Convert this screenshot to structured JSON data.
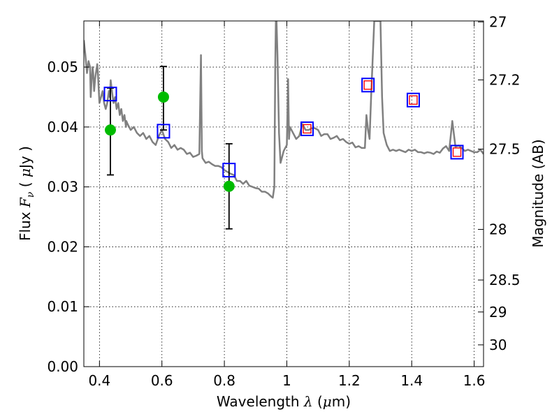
{
  "chart_data": {
    "type": "scatter",
    "xlabel": {
      "prefix": "Wavelength  ",
      "symbol": "λ",
      "open": " (",
      "unit_greek": "μ",
      "unit": "m)"
    },
    "ylabel": {
      "prefix": "Flux  ",
      "symbol": "F",
      "subscript": "ν",
      "open": "  ( ",
      "unit_greek": "μ",
      "unit": "Jy )"
    },
    "y2label": "Magnitude (AB)",
    "xlim": [
      0.35,
      1.63
    ],
    "ylim": [
      0.0,
      0.0577
    ],
    "grid": true,
    "x_ticks": [
      {
        "value": 0.4,
        "label": "0.4"
      },
      {
        "value": 0.6,
        "label": "0.6"
      },
      {
        "value": 0.8,
        "label": "0.8"
      },
      {
        "value": 1.0,
        "label": "1"
      },
      {
        "value": 1.2,
        "label": "1.2"
      },
      {
        "value": 1.4,
        "label": "1.4"
      },
      {
        "value": 1.6,
        "label": "1.6"
      }
    ],
    "y_ticks": [
      {
        "value": 0.0,
        "label": "0.00"
      },
      {
        "value": 0.01,
        "label": "0.01"
      },
      {
        "value": 0.02,
        "label": "0.02"
      },
      {
        "value": 0.03,
        "label": "0.03"
      },
      {
        "value": 0.04,
        "label": "0.04"
      },
      {
        "value": 0.05,
        "label": "0.05"
      }
    ],
    "y2_ticks": [
      {
        "mag": 27,
        "label": "27"
      },
      {
        "mag": 27.2,
        "label": "27.2"
      },
      {
        "mag": 27.5,
        "label": "27.5"
      },
      {
        "mag": 28,
        "label": "28"
      },
      {
        "mag": 28.5,
        "label": "28.5"
      },
      {
        "mag": 29,
        "label": "29"
      },
      {
        "mag": 30,
        "label": "30"
      }
    ],
    "series": [
      {
        "kind": "spectrum",
        "color": "#808080",
        "x": [
          0.35,
          0.355,
          0.36,
          0.365,
          0.37,
          0.372,
          0.375,
          0.378,
          0.38,
          0.383,
          0.386,
          0.39,
          0.393,
          0.395,
          0.4,
          0.405,
          0.41,
          0.415,
          0.42,
          0.425,
          0.43,
          0.433,
          0.436,
          0.44,
          0.445,
          0.45,
          0.455,
          0.46,
          0.465,
          0.47,
          0.475,
          0.48,
          0.485,
          0.486,
          0.49,
          0.5,
          0.51,
          0.52,
          0.53,
          0.54,
          0.55,
          0.56,
          0.57,
          0.58,
          0.59,
          0.6,
          0.61,
          0.62,
          0.63,
          0.64,
          0.65,
          0.66,
          0.67,
          0.68,
          0.69,
          0.7,
          0.71,
          0.72,
          0.725,
          0.728,
          0.73,
          0.74,
          0.75,
          0.76,
          0.77,
          0.78,
          0.79,
          0.8,
          0.81,
          0.82,
          0.83,
          0.84,
          0.85,
          0.86,
          0.87,
          0.88,
          0.89,
          0.9,
          0.91,
          0.92,
          0.93,
          0.94,
          0.95,
          0.955,
          0.96,
          0.963,
          0.965,
          0.967,
          0.97,
          0.975,
          0.98,
          0.99,
          1.0,
          1.004,
          1.007,
          1.01,
          1.02,
          1.03,
          1.04,
          1.05,
          1.06,
          1.07,
          1.08,
          1.09,
          1.1,
          1.11,
          1.12,
          1.13,
          1.14,
          1.15,
          1.16,
          1.17,
          1.18,
          1.19,
          1.2,
          1.21,
          1.22,
          1.23,
          1.24,
          1.25,
          1.255,
          1.26,
          1.265,
          1.27,
          1.28,
          1.29,
          1.3,
          1.305,
          1.31,
          1.315,
          1.32,
          1.325,
          1.33,
          1.34,
          1.35,
          1.36,
          1.37,
          1.38,
          1.39,
          1.4,
          1.41,
          1.42,
          1.43,
          1.44,
          1.45,
          1.46,
          1.47,
          1.48,
          1.49,
          1.5,
          1.51,
          1.52,
          1.53,
          1.54,
          1.55,
          1.56,
          1.57,
          1.58,
          1.59,
          1.6,
          1.61,
          1.62,
          1.63
        ],
        "y": [
          0.0545,
          0.052,
          0.049,
          0.051,
          0.05,
          0.045,
          0.048,
          0.05,
          0.049,
          0.046,
          0.048,
          0.0495,
          0.0505,
          0.049,
          0.044,
          0.045,
          0.046,
          0.044,
          0.043,
          0.044,
          0.046,
          0.045,
          0.0478,
          0.046,
          0.044,
          0.045,
          0.043,
          0.044,
          0.042,
          0.043,
          0.041,
          0.042,
          0.04,
          0.041,
          0.0405,
          0.0395,
          0.04,
          0.039,
          0.0385,
          0.039,
          0.038,
          0.0385,
          0.0375,
          0.037,
          0.0385,
          0.0395,
          0.038,
          0.0375,
          0.0365,
          0.037,
          0.0362,
          0.0365,
          0.0362,
          0.0355,
          0.0357,
          0.035,
          0.0352,
          0.0355,
          0.052,
          0.036,
          0.0348,
          0.034,
          0.0342,
          0.0338,
          0.0335,
          0.0335,
          0.0333,
          0.0328,
          0.0325,
          0.0322,
          0.032,
          0.031,
          0.031,
          0.0305,
          0.031,
          0.0302,
          0.03,
          0.0298,
          0.0297,
          0.0292,
          0.0292,
          0.0289,
          0.0284,
          0.0282,
          0.03,
          0.05,
          0.0577,
          0.0577,
          0.052,
          0.039,
          0.034,
          0.036,
          0.037,
          0.048,
          0.038,
          0.04,
          0.039,
          0.038,
          0.0385,
          0.0405,
          0.0395,
          0.0395,
          0.0398,
          0.0398,
          0.0395,
          0.0385,
          0.0388,
          0.0388,
          0.038,
          0.0382,
          0.0385,
          0.0378,
          0.038,
          0.0375,
          0.0372,
          0.0374,
          0.0366,
          0.0368,
          0.0365,
          0.0365,
          0.042,
          0.0395,
          0.038,
          0.045,
          0.0577,
          0.0577,
          0.0577,
          0.045,
          0.039,
          0.038,
          0.037,
          0.0365,
          0.036,
          0.0362,
          0.036,
          0.0362,
          0.036,
          0.0358,
          0.0362,
          0.036,
          0.0362,
          0.0358,
          0.0358,
          0.0356,
          0.0358,
          0.0357,
          0.0355,
          0.0359,
          0.0357,
          0.0364,
          0.0368,
          0.036,
          0.041,
          0.0367,
          0.0369,
          0.0365,
          0.036,
          0.0362,
          0.036,
          0.0358,
          0.0358,
          0.0362,
          0.0355
        ]
      },
      {
        "kind": "error_points",
        "color": "#00bb00",
        "x": [
          0.435,
          0.605,
          0.815
        ],
        "y": [
          0.0395,
          0.045,
          0.0301
        ],
        "yerr_low": [
          0.032,
          0.0395,
          0.023
        ],
        "yerr_high": [
          0.0465,
          0.0501,
          0.0372
        ]
      },
      {
        "kind": "model_boxes",
        "color": "#0000ff",
        "x": [
          0.435,
          0.605,
          0.815,
          1.065,
          1.26,
          1.405,
          1.545
        ],
        "y": [
          0.0455,
          0.0393,
          0.0328,
          0.0397,
          0.047,
          0.0445,
          0.0358
        ]
      },
      {
        "kind": "red_boxes",
        "color": "#ff0000",
        "x": [
          1.065,
          1.26,
          1.405,
          1.545
        ],
        "y": [
          0.0397,
          0.047,
          0.0445,
          0.0358
        ]
      }
    ]
  }
}
